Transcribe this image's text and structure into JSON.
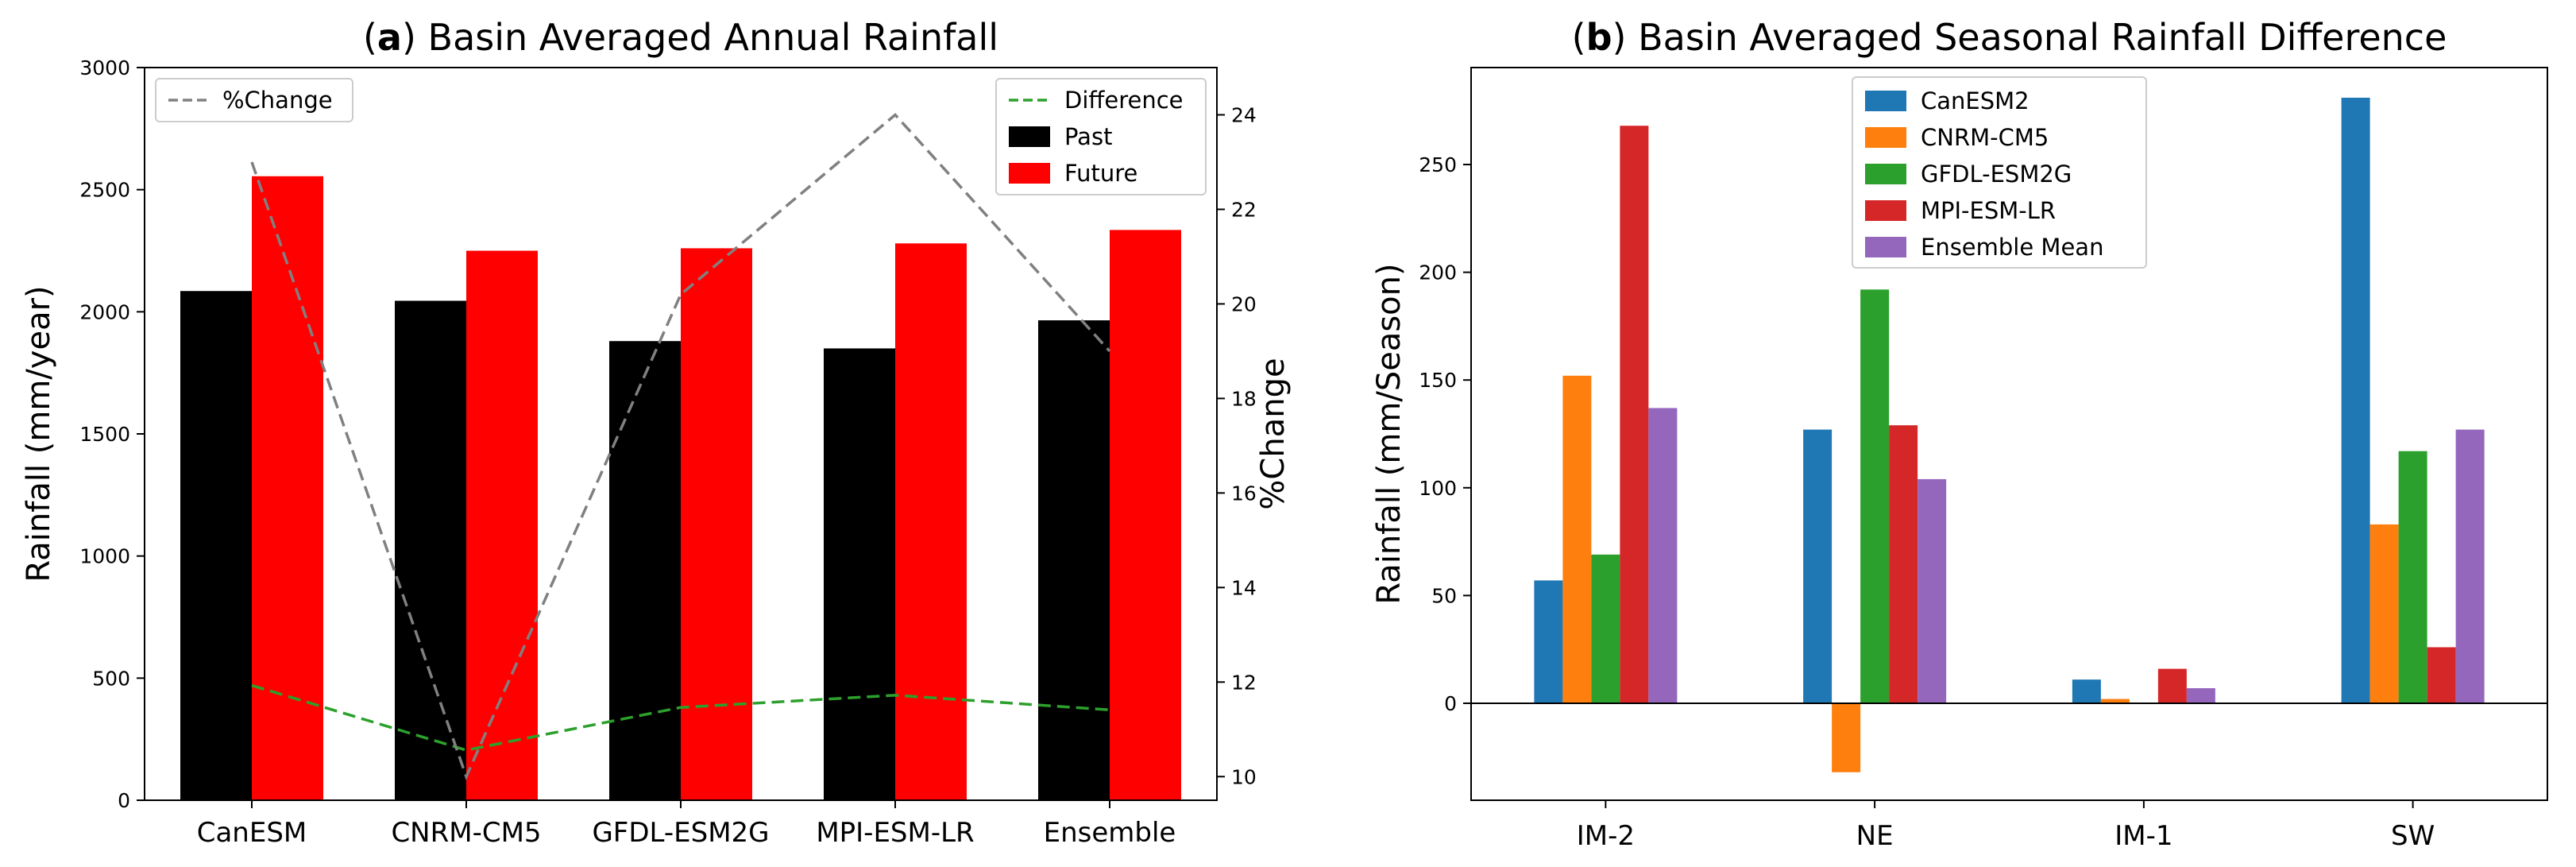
{
  "chart_data": [
    {
      "type": "bar",
      "title_prefix": "a",
      "title": "Basin Averaged Annual Rainfall",
      "xlabel": "",
      "ylabel": "Rainfall (mm/year)",
      "y2label": "%Change",
      "categories": [
        "CanESM",
        "CNRM-CM5",
        "GFDL-ESM2G",
        "MPI-ESM-LR",
        "Ensemble"
      ],
      "ylim": [
        0,
        3000
      ],
      "yticks": [
        0,
        500,
        1000,
        1500,
        2000,
        2500,
        3000
      ],
      "y2lim": [
        9.5,
        25.0
      ],
      "y2ticks": [
        10,
        12,
        14,
        16,
        18,
        20,
        22,
        24
      ],
      "series": [
        {
          "name": "Past",
          "color": "#000000",
          "values": [
            2085,
            2045,
            1880,
            1850,
            1965
          ]
        },
        {
          "name": "Future",
          "color": "#ff0000",
          "values": [
            2555,
            2250,
            2260,
            2280,
            2335
          ]
        }
      ],
      "lines": [
        {
          "name": "Difference",
          "color": "#2ca02c",
          "dashed": true,
          "axis": "left",
          "values": [
            470,
            205,
            380,
            430,
            370
          ]
        },
        {
          "name": "%Change",
          "color": "#808080",
          "dashed": true,
          "axis": "right",
          "values": [
            23.0,
            10.0,
            20.2,
            24.0,
            19.0
          ]
        }
      ],
      "legend_placement": [
        "top-left",
        "top-right"
      ],
      "grid": false
    },
    {
      "type": "bar",
      "title_prefix": "b",
      "title": "Basin Averaged Seasonal Rainfall Difference",
      "xlabel": "",
      "ylabel": "Rainfall (mm/Season)",
      "categories": [
        "IM-2",
        "NE",
        "IM-1",
        "SW"
      ],
      "ylim": [
        -45,
        295
      ],
      "yticks": [
        0,
        50,
        100,
        150,
        200,
        250
      ],
      "series": [
        {
          "name": "CanESM2",
          "color": "#1f77b4",
          "values": [
            57,
            127,
            11,
            281
          ]
        },
        {
          "name": "CNRM-CM5",
          "color": "#ff7f0e",
          "values": [
            152,
            -32,
            2,
            83
          ]
        },
        {
          "name": "GFDL-ESM2G",
          "color": "#2ca02c",
          "values": [
            69,
            192,
            0,
            117
          ]
        },
        {
          "name": "MPI-ESM-LR",
          "color": "#d62728",
          "values": [
            268,
            129,
            16,
            26
          ]
        },
        {
          "name": "Ensemble Mean",
          "color": "#9467bd",
          "values": [
            137,
            104,
            7,
            127
          ]
        }
      ],
      "zero_line": true,
      "legend_placement": "top-center",
      "grid": false
    }
  ]
}
